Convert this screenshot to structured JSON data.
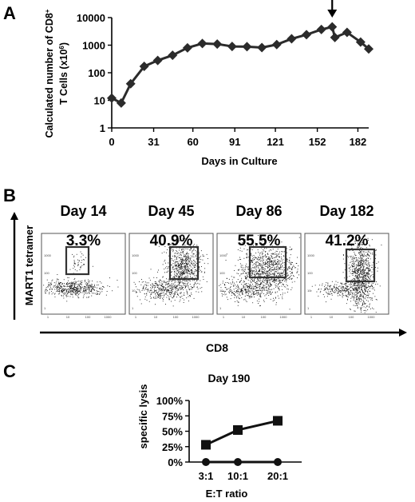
{
  "panels": {
    "a": {
      "letter": "A",
      "chart_data": {
        "type": "line",
        "xlabel": "Days in Culture",
        "ylabel_line1": "Calculated number of CD8",
        "ylabel_sup1": "+",
        "ylabel_line2": "T Cells (x10",
        "ylabel_sup2": "6",
        "ylabel_end2": ")",
        "yscale": "log",
        "ylim": [
          1,
          10000
        ],
        "xlim": [
          0,
          190
        ],
        "x_ticks": [
          0,
          31,
          60,
          91,
          121,
          152,
          182
        ],
        "y_ticks": [
          {
            "value": 1,
            "label": "1"
          },
          {
            "value": 10,
            "label": "10"
          },
          {
            "value": 100,
            "label": "100"
          },
          {
            "value": 1000,
            "label": "1000"
          },
          {
            "value": 10000,
            "label": "10000"
          }
        ],
        "marker": "diamond",
        "annotation": "arrow",
        "annotation_x": 163,
        "series": [
          {
            "x": [
              0,
              7,
              14,
              24,
              34,
              45,
              56,
              67,
              78,
              89,
              100,
              111,
              122,
              133,
              144,
              155,
              163,
              165,
              174,
              184,
              190
            ],
            "y": [
              12,
              8,
              40,
              170,
              280,
              430,
              800,
              1150,
              1100,
              900,
              880,
              820,
              1050,
              1700,
              2400,
              3700,
              4600,
              1900,
              2900,
              1300,
              730
            ]
          }
        ]
      }
    },
    "b": {
      "letter": "B",
      "y_label": "MART1 tetramer",
      "x_label": "CD8",
      "plots": [
        {
          "day": "Day 14",
          "percent": "3.3%",
          "type": "scatter",
          "tick_labels": [
            "1",
            "10",
            "100",
            "1000"
          ]
        },
        {
          "day": "Day 45",
          "percent": "40.9%",
          "type": "scatter",
          "tick_labels": [
            "1",
            "10",
            "100",
            "1000"
          ]
        },
        {
          "day": "Day 86",
          "percent": "55.5%",
          "type": "scatter",
          "tick_labels": [
            "1",
            "10",
            "100",
            "1000"
          ]
        },
        {
          "day": "Day 182",
          "percent": "41.2%",
          "type": "scatter",
          "tick_labels": [
            "1",
            "10",
            "100",
            "1000"
          ]
        }
      ]
    },
    "c": {
      "letter": "C",
      "chart_data": {
        "type": "line",
        "title": "Day 190",
        "ylabel": "specific lysis",
        "xlabel": "E:T ratio",
        "categories": [
          "3:1",
          "10:1",
          "20:1"
        ],
        "ylim": [
          0,
          100
        ],
        "y_ticks": [
          {
            "value": 0,
            "label": "0%"
          },
          {
            "value": 25,
            "label": "25%"
          },
          {
            "value": 50,
            "label": "50%"
          },
          {
            "value": 75,
            "label": "75%"
          },
          {
            "value": 100,
            "label": "100%"
          }
        ],
        "series": [
          {
            "marker": "square",
            "values": [
              28,
              52,
              67
            ]
          },
          {
            "marker": "circle",
            "values": [
              0,
              0,
              0
            ]
          }
        ]
      }
    }
  }
}
